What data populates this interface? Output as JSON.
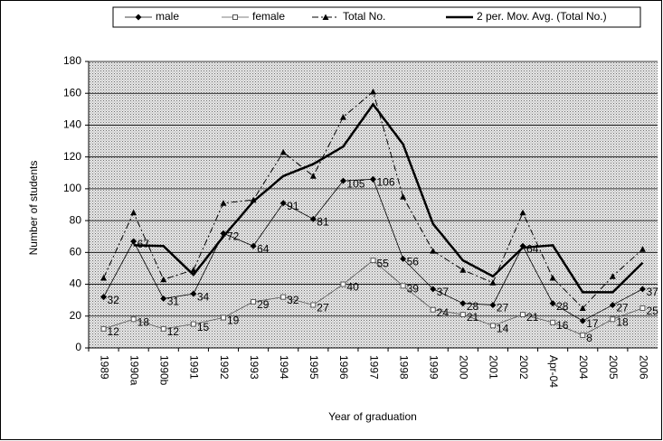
{
  "chart_data": {
    "type": "line",
    "categories": [
      "1989",
      "1990a",
      "1990b",
      "1991",
      "1992",
      "1993",
      "1994",
      "1995",
      "1996",
      "1997",
      "1998",
      "1999",
      "2000",
      "2001",
      "2002",
      "Apr-04",
      "2004",
      "2005",
      "2006"
    ],
    "series": [
      {
        "name": "male",
        "color": "#000000",
        "width": 0.8,
        "line_style": "solid",
        "marker": "diamond",
        "show_labels": true,
        "values": [
          32,
          67,
          31,
          34,
          72,
          64,
          91,
          81,
          105,
          106,
          56,
          37,
          28,
          27,
          64,
          28,
          17,
          27,
          37
        ]
      },
      {
        "name": "female",
        "color": "#555555",
        "width": 0.8,
        "line_style": "solid",
        "marker": "square",
        "show_labels": true,
        "values": [
          12,
          18,
          12,
          15,
          19,
          29,
          32,
          27,
          40,
          55,
          39,
          24,
          21,
          14,
          21,
          16,
          8,
          18,
          25
        ]
      },
      {
        "name": "Total No.",
        "color": "#000000",
        "width": 1,
        "line_style": "dashdot",
        "marker": "triangle",
        "show_labels": false,
        "values": [
          44,
          85,
          43,
          49,
          91,
          93,
          123,
          108,
          145,
          161,
          95,
          61,
          49,
          41,
          85,
          44,
          25,
          45,
          62
        ]
      },
      {
        "name": "2 per. Mov. Avg. (Total No.)",
        "color": "#000000",
        "width": 2.5,
        "line_style": "solid",
        "marker": "none",
        "show_labels": false,
        "values": [
          null,
          64.5,
          64,
          46,
          70,
          92,
          108,
          115.5,
          126.5,
          153,
          128,
          78,
          55,
          45,
          63,
          64.5,
          35,
          35,
          53.5
        ]
      }
    ],
    "y_label": "Number of students",
    "x_label": "Year of graduation",
    "ylim": [
      0,
      180
    ],
    "yticks": [
      0,
      20,
      40,
      60,
      80,
      100,
      120,
      140,
      160,
      180
    ],
    "grid": true,
    "legend": "top"
  }
}
